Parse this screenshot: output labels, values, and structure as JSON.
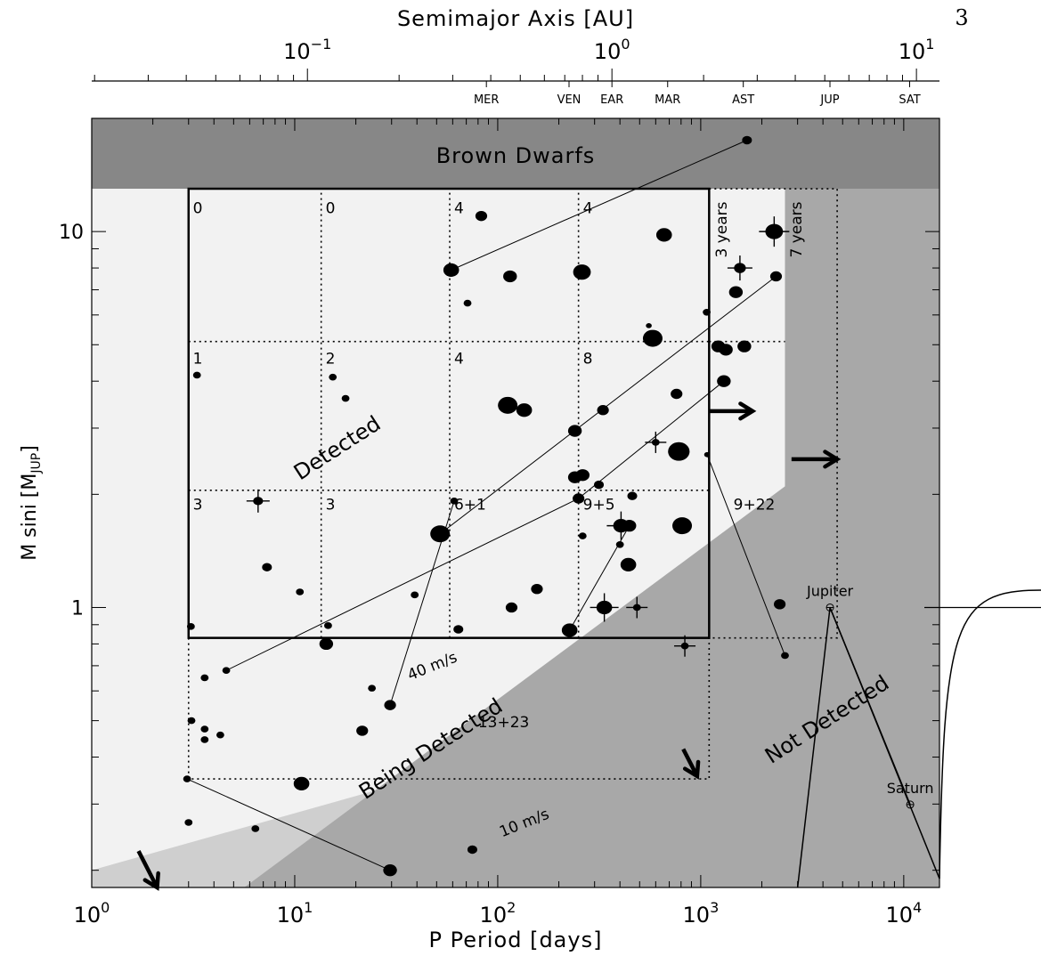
{
  "page": {
    "number": "3"
  },
  "chart_data": {
    "type": "scatter",
    "xlabel": "P Period [days]",
    "ylabel_main": "M sini [M",
    "ylabel_sub": "JUP",
    "ylabel_close": "]",
    "top_axis_label": "Semimajor Axis [AU]",
    "x_scale": "log",
    "y_scale": "log",
    "xlim": [
      1,
      15000
    ],
    "ylim": [
      0.18,
      20
    ],
    "xticks": [
      {
        "value": 1,
        "base": "10",
        "exp": "0"
      },
      {
        "value": 10,
        "base": "10",
        "exp": "1"
      },
      {
        "value": 100,
        "base": "10",
        "exp": "2"
      },
      {
        "value": 1000,
        "base": "10",
        "exp": "3"
      },
      {
        "value": 10000,
        "base": "10",
        "exp": "4"
      }
    ],
    "yticks": [
      {
        "value": 1,
        "label": "1"
      },
      {
        "value": 10,
        "label": "10"
      }
    ],
    "top_ticks": [
      {
        "au": 0.1,
        "base": "10",
        "exp": "−1"
      },
      {
        "au": 1,
        "base": "10",
        "exp": "0"
      },
      {
        "au": 10,
        "base": "10",
        "exp": "1"
      }
    ],
    "planet_markers": [
      {
        "label": "MER",
        "au": 0.387
      },
      {
        "label": "VEN",
        "au": 0.723
      },
      {
        "label": "EAR",
        "au": 1.0
      },
      {
        "label": "MAR",
        "au": 1.524
      },
      {
        "label": "AST",
        "au": 2.7
      },
      {
        "label": "JUP",
        "au": 5.2
      },
      {
        "label": "SAT",
        "au": 9.5
      }
    ],
    "regions": {
      "brown_dwarf_min_mass": 13,
      "being_detected_boundary": [
        [
          1,
          0.2
        ],
        [
          2600,
          0.66
        ],
        [
          2600,
          13
        ]
      ],
      "not_detected_boundary": [
        [
          1,
          0.09
        ],
        [
          2600,
          2.1
        ],
        [
          2600,
          13
        ]
      ],
      "colors": {
        "background": "#f2f2f2",
        "being_detected": "#cfcfcf",
        "not_detected": "#a8a8a8",
        "brown_dwarfs": "#878787"
      }
    },
    "region_labels": {
      "brown_dwarfs": "Brown Dwarfs",
      "detected": "Detected",
      "being_detected": "Being Detected",
      "not_detected": "Not Detected",
      "k40": "40 m/s",
      "k10": "10 m/s",
      "years3": "3 years",
      "years7": "7 years"
    },
    "detected_box": {
      "x": [
        3.0,
        1100
      ],
      "y": [
        0.83,
        13
      ]
    },
    "grid_x": [
      3.0,
      13.5,
      58,
      250,
      1100
    ],
    "grid_y": [
      0.83,
      2.05,
      5.1,
      13
    ],
    "extended_x": [
      2600,
      4700
    ],
    "bin_counts": [
      {
        "text": "0",
        "x": 3.15,
        "y": 11.2
      },
      {
        "text": "0",
        "x": 14.2,
        "y": 11.2
      },
      {
        "text": "4",
        "x": 61,
        "y": 11.2
      },
      {
        "text": "4",
        "x": 263,
        "y": 11.2
      },
      {
        "text": "1",
        "x": 3.15,
        "y": 4.45
      },
      {
        "text": "2",
        "x": 14.2,
        "y": 4.45
      },
      {
        "text": "4",
        "x": 61,
        "y": 4.45
      },
      {
        "text": "8",
        "x": 263,
        "y": 4.45
      },
      {
        "text": "3",
        "x": 3.15,
        "y": 1.82
      },
      {
        "text": "3",
        "x": 14.2,
        "y": 1.82
      },
      {
        "text": "6+1",
        "x": 61,
        "y": 1.82
      },
      {
        "text": "9+5",
        "x": 263,
        "y": 1.82
      },
      {
        "text": "9+22",
        "x": 1450,
        "y": 1.82
      },
      {
        "text": "13+23",
        "x": 80,
        "y": 0.48
      }
    ],
    "solar_planets": [
      {
        "name": "Jupiter",
        "period": 4333,
        "mass": 1.0
      },
      {
        "name": "Saturn",
        "period": 10760,
        "mass": 0.299
      }
    ],
    "points": [
      {
        "x": 1690,
        "y": 17.5,
        "s": 5
      },
      {
        "x": 83,
        "y": 11.0,
        "s": 6
      },
      {
        "x": 59,
        "y": 7.9,
        "s": 8
      },
      {
        "x": 115,
        "y": 7.6,
        "s": 7
      },
      {
        "x": 260,
        "y": 7.8,
        "s": 9
      },
      {
        "x": 660,
        "y": 9.8,
        "s": 8
      },
      {
        "x": 2300,
        "y": 10.0,
        "s": 9,
        "err": true
      },
      {
        "x": 1560,
        "y": 8.0,
        "s": 6,
        "err": true
      },
      {
        "x": 2350,
        "y": 7.6,
        "s": 6
      },
      {
        "x": 1490,
        "y": 6.9,
        "s": 7
      },
      {
        "x": 71,
        "y": 6.45,
        "s": 4
      },
      {
        "x": 555,
        "y": 5.62,
        "s": 3
      },
      {
        "x": 1070,
        "y": 6.1,
        "s": 4
      },
      {
        "x": 580,
        "y": 5.2,
        "s": 10
      },
      {
        "x": 1220,
        "y": 4.95,
        "s": 7
      },
      {
        "x": 1330,
        "y": 4.85,
        "s": 7
      },
      {
        "x": 1640,
        "y": 4.95,
        "s": 7
      },
      {
        "x": 3.3,
        "y": 4.15,
        "s": 4
      },
      {
        "x": 15.4,
        "y": 4.1,
        "s": 4
      },
      {
        "x": 17.8,
        "y": 3.6,
        "s": 4
      },
      {
        "x": 112,
        "y": 3.45,
        "s": 10
      },
      {
        "x": 135,
        "y": 3.35,
        "s": 8
      },
      {
        "x": 760,
        "y": 3.7,
        "s": 6
      },
      {
        "x": 1300,
        "y": 4.0,
        "s": 7
      },
      {
        "x": 330,
        "y": 3.35,
        "s": 6
      },
      {
        "x": 240,
        "y": 2.95,
        "s": 7
      },
      {
        "x": 600,
        "y": 2.75,
        "s": 4,
        "err": true
      },
      {
        "x": 780,
        "y": 2.6,
        "s": 11
      },
      {
        "x": 1075,
        "y": 2.55,
        "s": 3
      },
      {
        "x": 240,
        "y": 2.22,
        "s": 7
      },
      {
        "x": 262,
        "y": 2.25,
        "s": 7
      },
      {
        "x": 315,
        "y": 2.12,
        "s": 5
      },
      {
        "x": 250,
        "y": 1.95,
        "s": 6
      },
      {
        "x": 460,
        "y": 1.98,
        "s": 5
      },
      {
        "x": 6.6,
        "y": 1.92,
        "s": 5,
        "err": true
      },
      {
        "x": 61,
        "y": 1.92,
        "s": 4
      },
      {
        "x": 52,
        "y": 1.57,
        "s": 10
      },
      {
        "x": 405,
        "y": 1.65,
        "s": 8,
        "err": true
      },
      {
        "x": 445,
        "y": 1.65,
        "s": 7
      },
      {
        "x": 810,
        "y": 1.65,
        "s": 10
      },
      {
        "x": 262,
        "y": 1.55,
        "s": 4
      },
      {
        "x": 400,
        "y": 1.47,
        "s": 4
      },
      {
        "x": 440,
        "y": 1.3,
        "s": 8
      },
      {
        "x": 7.3,
        "y": 1.28,
        "s": 5
      },
      {
        "x": 10.6,
        "y": 1.1,
        "s": 4
      },
      {
        "x": 39,
        "y": 1.08,
        "s": 4
      },
      {
        "x": 156,
        "y": 1.12,
        "s": 6
      },
      {
        "x": 117,
        "y": 1.0,
        "s": 6
      },
      {
        "x": 2450,
        "y": 1.02,
        "s": 6
      },
      {
        "x": 335,
        "y": 1.0,
        "s": 8,
        "err": true
      },
      {
        "x": 485,
        "y": 1.0,
        "s": 4,
        "err": true
      },
      {
        "x": 3.08,
        "y": 0.89,
        "s": 4
      },
      {
        "x": 14.6,
        "y": 0.895,
        "s": 4
      },
      {
        "x": 64,
        "y": 0.875,
        "s": 5
      },
      {
        "x": 226,
        "y": 0.87,
        "s": 8
      },
      {
        "x": 14.3,
        "y": 0.8,
        "s": 7
      },
      {
        "x": 835,
        "y": 0.79,
        "s": 4,
        "err": true
      },
      {
        "x": 2600,
        "y": 0.745,
        "s": 4
      },
      {
        "x": 4.6,
        "y": 0.68,
        "s": 4
      },
      {
        "x": 3.6,
        "y": 0.65,
        "s": 4
      },
      {
        "x": 24,
        "y": 0.61,
        "s": 4
      },
      {
        "x": 29.5,
        "y": 0.55,
        "s": 6
      },
      {
        "x": 3.1,
        "y": 0.5,
        "s": 4
      },
      {
        "x": 3.6,
        "y": 0.475,
        "s": 4
      },
      {
        "x": 3.6,
        "y": 0.445,
        "s": 4
      },
      {
        "x": 4.3,
        "y": 0.458,
        "s": 4
      },
      {
        "x": 21.5,
        "y": 0.47,
        "s": 6
      },
      {
        "x": 2.95,
        "y": 0.35,
        "s": 4
      },
      {
        "x": 10.8,
        "y": 0.34,
        "s": 8
      },
      {
        "x": 3.0,
        "y": 0.268,
        "s": 4
      },
      {
        "x": 6.4,
        "y": 0.258,
        "s": 4
      },
      {
        "x": 75,
        "y": 0.227,
        "s": 5
      },
      {
        "x": 29.5,
        "y": 0.2,
        "s": 7
      }
    ],
    "connections": [
      [
        [
          59,
          7.9
        ],
        [
          1690,
          17.5
        ]
      ],
      [
        [
          29.5,
          0.55
        ],
        [
          61,
          1.92
        ]
      ],
      [
        [
          52,
          1.57
        ],
        [
          2350,
          7.6
        ]
      ],
      [
        [
          4.6,
          0.68
        ],
        [
          250,
          1.95
        ]
      ],
      [
        [
          226,
          0.87
        ],
        [
          445,
          1.65
        ]
      ],
      [
        [
          250,
          1.95
        ],
        [
          1300,
          4.0
        ]
      ],
      [
        [
          1075,
          2.55
        ],
        [
          2600,
          0.745
        ]
      ],
      [
        [
          2.95,
          0.35
        ],
        [
          29.5,
          0.2
        ]
      ]
    ],
    "arrows": [
      {
        "from": [
          1100,
          3.33
        ],
        "to": [
          1800,
          3.33
        ]
      },
      {
        "from": [
          2800,
          2.48
        ],
        "to": [
          4700,
          2.48
        ]
      },
      {
        "from": [
          1.7,
          0.225
        ],
        "to": [
          2.1,
          0.18
        ]
      },
      {
        "from": [
          820,
          0.42
        ],
        "to": [
          960,
          0.356
        ]
      }
    ],
    "velocity_labels": [
      {
        "key": "k40",
        "x": 37,
        "y": 0.64,
        "angle": -22
      },
      {
        "key": "k10",
        "x": 105,
        "y": 0.245,
        "angle": -22
      }
    ]
  }
}
